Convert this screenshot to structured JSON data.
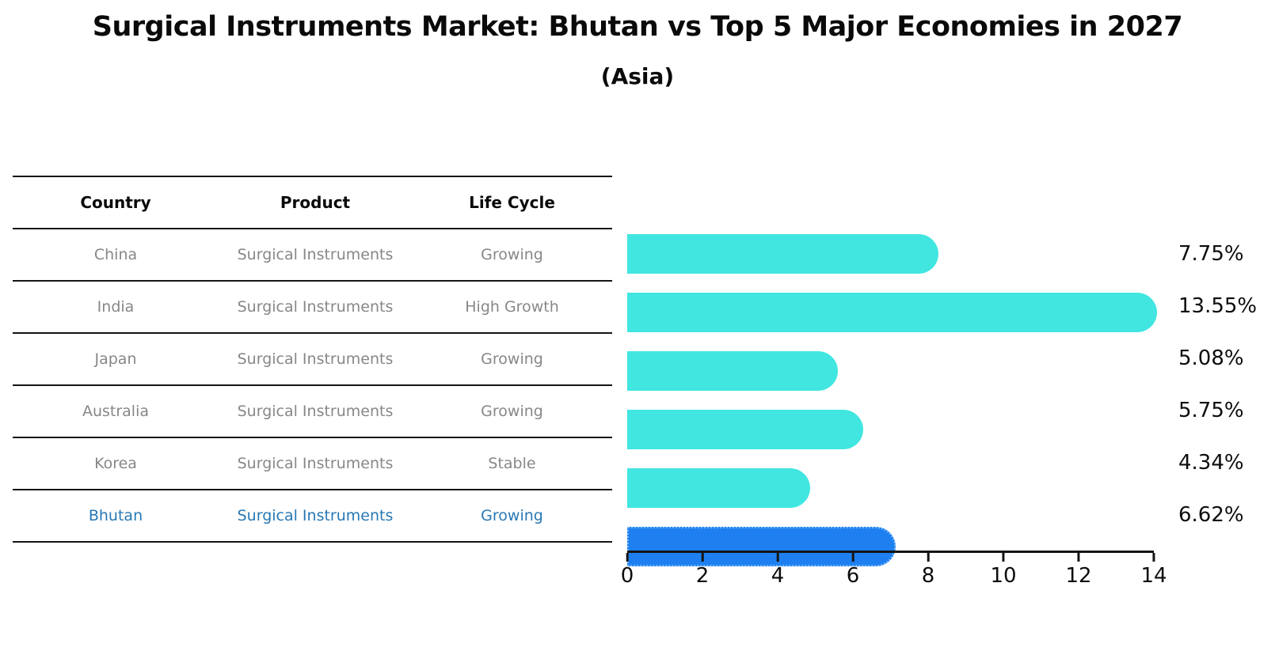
{
  "title": "Surgical Instruments Market: Bhutan vs Top 5 Major Economies in 2027",
  "subtitle": "(Asia)",
  "table": {
    "headers": [
      "Country",
      "Product",
      "Life Cycle"
    ],
    "rows": [
      {
        "country": "China",
        "product": "Surgical Instruments",
        "life_cycle": "Growing"
      },
      {
        "country": "India",
        "product": "Surgical Instruments",
        "life_cycle": "High Growth"
      },
      {
        "country": "Japan",
        "product": "Surgical Instruments",
        "life_cycle": "Growing"
      },
      {
        "country": "Australia",
        "product": "Surgical Instruments",
        "life_cycle": "Growing"
      },
      {
        "country": "Korea",
        "product": "Surgical Instruments",
        "life_cycle": "Stable"
      },
      {
        "country": "Bhutan",
        "product": "Surgical Instruments",
        "life_cycle": "Growing"
      }
    ]
  },
  "chart_data": {
    "type": "bar",
    "orientation": "horizontal",
    "title": "Surgical Instruments Market: Bhutan vs Top 5 Major Economies in 2027",
    "subtitle": "(Asia)",
    "categories": [
      "China",
      "India",
      "Japan",
      "Australia",
      "Korea",
      "Bhutan"
    ],
    "values": [
      7.75,
      13.55,
      5.08,
      5.75,
      4.34,
      6.62
    ],
    "value_labels": [
      "7.75%",
      "13.55%",
      "5.08%",
      "5.75%",
      "4.34%",
      "6.62%"
    ],
    "xlabel": "",
    "ylabel": "",
    "xlim": [
      0,
      14
    ],
    "x_ticks": [
      0,
      2,
      4,
      6,
      8,
      10,
      12,
      14
    ],
    "x_tick_labels": [
      "0",
      "2",
      "4",
      "6",
      "8",
      "10",
      "12",
      "14"
    ],
    "grid": false,
    "legend": "none",
    "highlight_index": 5,
    "bar_color": "#41E6E0",
    "highlight_bar_color": "#1E80F0"
  },
  "colors": {
    "bar": "#41E6E0",
    "highlight_bar": "#1E80F0",
    "highlight_border": "#76B6F6",
    "highlight_text": "#2878B5",
    "row_text": "#878787",
    "axis": "#141414"
  }
}
